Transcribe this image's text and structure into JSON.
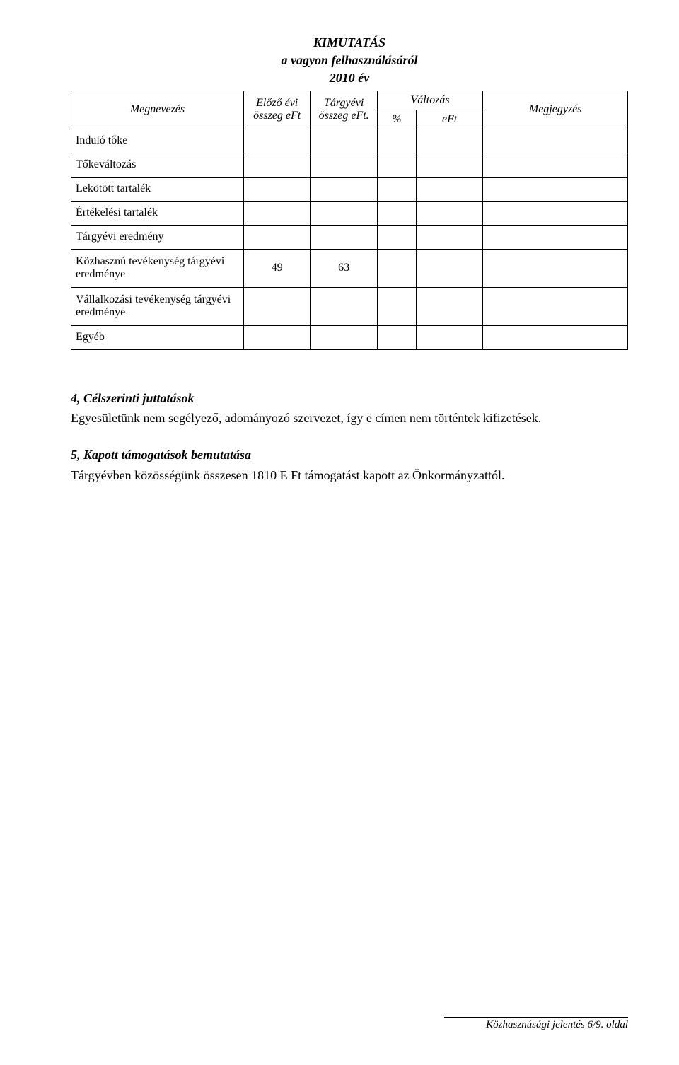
{
  "title": {
    "line1": "KIMUTATÁS",
    "line2": "a vagyon felhasználásáról",
    "line3": "2010 év"
  },
  "table": {
    "headers": {
      "name": "Megnevezés",
      "prev": "Előző évi összeg eFt",
      "curr": "Tárgyévi összeg eFt.",
      "change": "Változás",
      "pct": "%",
      "eft": "eFt",
      "note": "Megjegyzés"
    },
    "rows": [
      {
        "name": "Induló tőke",
        "prev": "",
        "curr": "",
        "pct": "",
        "eft": "",
        "note": ""
      },
      {
        "name": "Tőkeváltozás",
        "prev": "",
        "curr": "",
        "pct": "",
        "eft": "",
        "note": ""
      },
      {
        "name": "Lekötött tartalék",
        "prev": "",
        "curr": "",
        "pct": "",
        "eft": "",
        "note": ""
      },
      {
        "name": "Értékelési tartalék",
        "prev": "",
        "curr": "",
        "pct": "",
        "eft": "",
        "note": ""
      },
      {
        "name": "Tárgyévi eredmény",
        "prev": "",
        "curr": "",
        "pct": "",
        "eft": "",
        "note": ""
      },
      {
        "name": "Közhasznú tevékenység tárgyévi eredménye",
        "prev": "49",
        "curr": "63",
        "pct": "",
        "eft": "",
        "note": ""
      },
      {
        "name": "Vállalkozási tevékenység tárgyévi eredménye",
        "prev": "",
        "curr": "",
        "pct": "",
        "eft": "",
        "note": ""
      },
      {
        "name": "Egyéb",
        "prev": "",
        "curr": "",
        "pct": "",
        "eft": "",
        "note": ""
      }
    ]
  },
  "section4": {
    "heading": "4, Célszerinti juttatások",
    "text": "Egyesületünk nem segélyező, adományozó szervezet, így e címen nem történtek kifizetések."
  },
  "section5": {
    "heading": "5, Kapott támogatások bemutatása",
    "text": "Tárgyévben közösségünk összesen 1810 E Ft támogatást kapott az Önkormányzattól."
  },
  "footer": "Közhasznúsági jelentés 6/9. oldal"
}
